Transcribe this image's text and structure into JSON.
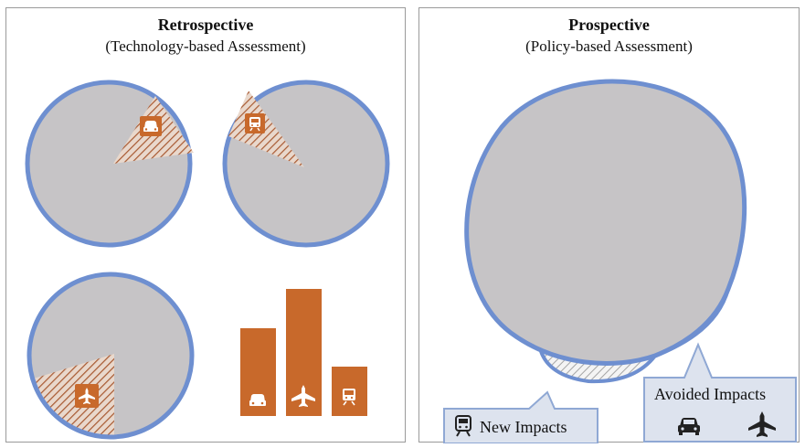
{
  "left_panel": {
    "title": "Retrospective",
    "subtitle": "(Technology-based Assessment)"
  },
  "right_panel": {
    "title": "Prospective",
    "subtitle": "(Policy-based Assessment)",
    "new_impacts_label": "New Impacts",
    "avoided_impacts_label": "Avoided Impacts"
  },
  "colors": {
    "circle_fill": "#c6c4c6",
    "circle_stroke": "#6e8fd0",
    "accent": "#c8692b",
    "hatch_line": "#a85a32",
    "callout_fill": "#dde3ee",
    "callout_stroke": "#8fa8d4"
  },
  "icons": [
    "car-icon",
    "train-icon",
    "airplane-icon"
  ]
}
